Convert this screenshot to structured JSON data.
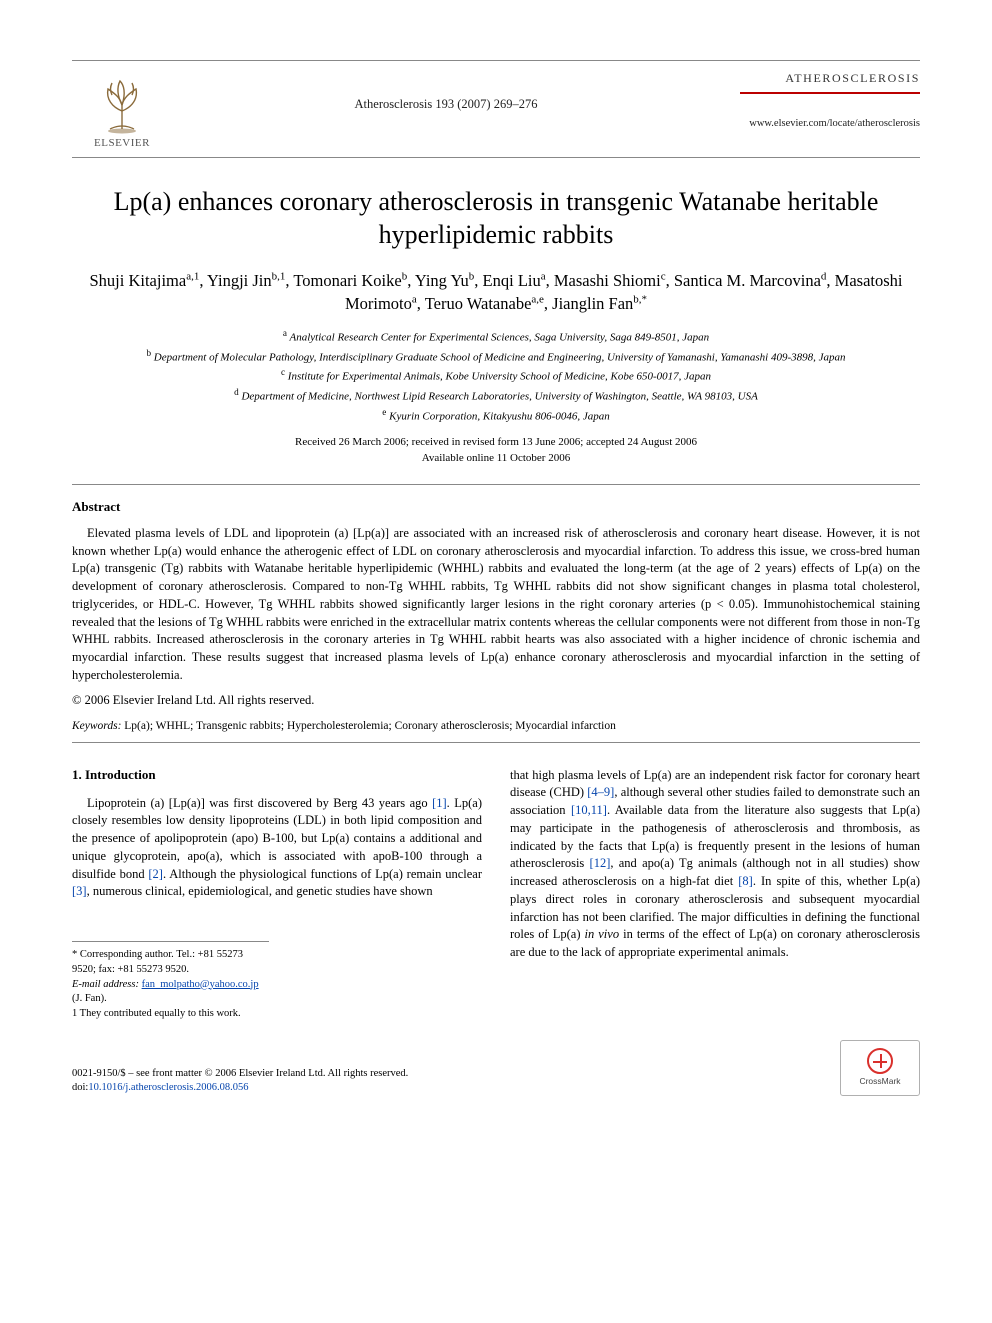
{
  "header": {
    "publisher": "ELSEVIER",
    "journal_ref": "Atherosclerosis 193 (2007) 269–276",
    "journal_brand": "ATHEROSCLEROSIS",
    "journal_url": "www.elsevier.com/locate/atherosclerosis"
  },
  "title": "Lp(a) enhances coronary atherosclerosis in transgenic Watanabe heritable hyperlipidemic rabbits",
  "authors_html": "Shuji Kitajima<sup>a,1</sup>, Yingji Jin<sup>b,1</sup>, Tomonari Koike<sup>b</sup>, Ying Yu<sup>b</sup>, Enqi Liu<sup>a</sup>, Masashi Shiomi<sup>c</sup>, Santica M. Marcovina<sup>d</sup>, Masatoshi Morimoto<sup>a</sup>, Teruo Watanabe<sup>a,e</sup>, Jianglin Fan<sup>b,*</sup>",
  "affiliations": [
    "<sup>a</sup> Analytical Research Center for Experimental Sciences, Saga University, Saga 849-8501, Japan",
    "<sup>b</sup> Department of Molecular Pathology, Interdisciplinary Graduate School of Medicine and Engineering, University of Yamanashi, Yamanashi 409-3898, Japan",
    "<sup>c</sup> Institute for Experimental Animals, Kobe University School of Medicine, Kobe 650-0017, Japan",
    "<sup>d</sup> Department of Medicine, Northwest Lipid Research Laboratories, University of Washington, Seattle, WA 98103, USA",
    "<sup>e</sup> Kyurin Corporation, Kitakyushu 806-0046, Japan"
  ],
  "dates_line1": "Received 26 March 2006; received in revised form 13 June 2006; accepted 24 August 2006",
  "dates_line2": "Available online 11 October 2006",
  "abstract_heading": "Abstract",
  "abstract_body": "Elevated plasma levels of LDL and lipoprotein (a) [Lp(a)] are associated with an increased risk of atherosclerosis and coronary heart disease. However, it is not known whether Lp(a) would enhance the atherogenic effect of LDL on coronary atherosclerosis and myocardial infarction. To address this issue, we cross-bred human Lp(a) transgenic (Tg) rabbits with Watanabe heritable hyperlipidemic (WHHL) rabbits and evaluated the long-term (at the age of 2 years) effects of Lp(a) on the development of coronary atherosclerosis. Compared to non-Tg WHHL rabbits, Tg WHHL rabbits did not show significant changes in plasma total cholesterol, triglycerides, or HDL-C. However, Tg WHHL rabbits showed significantly larger lesions in the right coronary arteries (p < 0.05). Immunohistochemical staining revealed that the lesions of Tg WHHL rabbits were enriched in the extracellular matrix contents whereas the cellular components were not different from those in non-Tg WHHL rabbits. Increased atherosclerosis in the coronary arteries in Tg WHHL rabbit hearts was also associated with a higher incidence of chronic ischemia and myocardial infarction. These results suggest that increased plasma levels of Lp(a) enhance coronary atherosclerosis and myocardial infarction in the setting of hypercholesterolemia.",
  "copyright": "© 2006 Elsevier Ireland Ltd. All rights reserved.",
  "keywords_label": "Keywords:",
  "keywords_text": " Lp(a); WHHL; Transgenic rabbits; Hypercholesterolemia; Coronary atherosclerosis; Myocardial infarction",
  "section_heading": "1.  Introduction",
  "intro_col1_html": "Lipoprotein (a) [Lp(a)] was first discovered by Berg 43 years ago <span class=\"ref-link\">[1]</span>. Lp(a) closely resembles low density lipoproteins (LDL) in both lipid composition and the presence of apolipoprotein (apo) B-100, but Lp(a) contains a additional and unique glycoprotein, apo(a), which is associated with apoB-100 through a disulfide bond <span class=\"ref-link\">[2]</span>. Although the physiological functions of Lp(a) remain unclear <span class=\"ref-link\">[3]</span>, numerous clinical, epidemiological, and genetic studies have shown",
  "intro_col2_html": "that high plasma levels of Lp(a) are an independent risk factor for coronary heart disease (CHD) <span class=\"ref-link\">[4–9]</span>, although several other studies failed to demonstrate such an association <span class=\"ref-link\">[10,11]</span>. Available data from the literature also suggests that Lp(a) may participate in the pathogenesis of atherosclerosis and thrombosis, as indicated by the facts that Lp(a) is frequently present in the lesions of human atherosclerosis <span class=\"ref-link\">[12]</span>, and apo(a) Tg animals (although not in all studies) show increased atherosclerosis on a high-fat diet <span class=\"ref-link\">[8]</span>. In spite of this, whether Lp(a) plays direct roles in coronary atherosclerosis and subsequent myocardial infarction has not been clarified. The major difficulties in defining the functional roles of Lp(a) <span class=\"italic\">in vivo</span> in terms of the effect of Lp(a) on coronary atherosclerosis are due to the lack of appropriate experimental animals.",
  "footnotes": {
    "corr": "* Corresponding author. Tel.: +81 55273 9520; fax: +81 55273 9520.",
    "email_label": "E-mail address:",
    "email": "fan_molpatho@yahoo.co.jp",
    "email_tail": " (J. Fan).",
    "equal": "1  They contributed equally to this work."
  },
  "footer": {
    "line1": "0021-9150/$ – see front matter © 2006 Elsevier Ireland Ltd. All rights reserved.",
    "line2_label": "doi:",
    "line2_doi": "10.1016/j.atherosclerosis.2006.08.056",
    "crossmark": "CrossMark"
  },
  "colors": {
    "rule": "#888888",
    "brand_red": "#b00000",
    "link": "#0645ad",
    "text": "#000000"
  },
  "typography": {
    "title_pt": 26,
    "author_pt": 16.5,
    "body_pt": 12.5,
    "small_pt": 11,
    "footnote_pt": 10.5
  }
}
